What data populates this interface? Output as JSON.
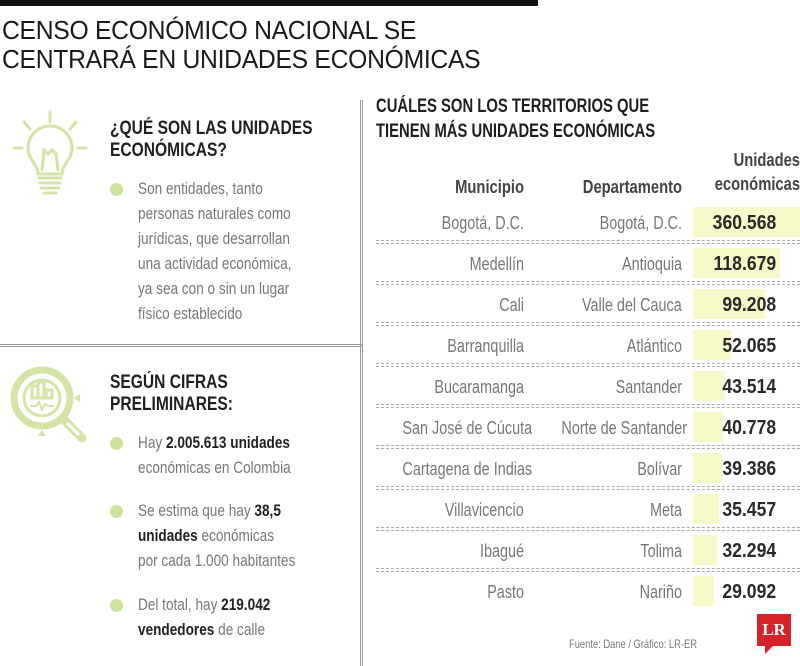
{
  "header": {
    "title_line1": "CENSO ECONÓMICO NACIONAL SE",
    "title_line2": "CENTRARÁ EN UNIDADES ECONÓMICAS"
  },
  "left": {
    "section1": {
      "icon": "lightbulb-icon",
      "title_line1": "¿QUÉ SON LAS UNIDADES",
      "title_line2": "ECONÓMICAS?",
      "bullet_lines": [
        "Son entidades, tanto",
        "personas naturales como",
        "jurídicas, que desarrollan",
        "una actividad económica,",
        "ya sea con o sin un lugar",
        "físico establecido"
      ]
    },
    "section2": {
      "icon": "magnifier-chart-icon",
      "title_line1": "SEGÚN CIFRAS",
      "title_line2": "PRELIMINARES:",
      "bullets": [
        {
          "line1_pre": "Hay ",
          "line1_bold": "2.005.613 unidades",
          "line2": "económicas en Colombia"
        },
        {
          "line1_pre": "Se estima que hay ",
          "line1_bold": "38,5",
          "line2_bold": "unidades",
          "line2_post": " económicas",
          "line3": "por cada 1.000 habitantes"
        },
        {
          "line1_pre": "Del total, hay ",
          "line1_bold": "219.042",
          "line2_bold": "vendedores",
          "line2_post": " de calle"
        }
      ]
    }
  },
  "table": {
    "title_line1": "CUÁLES SON LOS TERRITORIOS QUE",
    "title_line2": "TIENEN MÁS UNIDADES ECONÓMICAS",
    "headers": {
      "municipio": "Municipio",
      "departamento": "Departamento",
      "unidades_line1": "Unidades",
      "unidades_line2": "económicas"
    },
    "rows": [
      {
        "municipio": "Bogotá, D.C.",
        "departamento": "Bogotá, D.C.",
        "unidades": "360.568"
      },
      {
        "municipio": "Medellín",
        "departamento": "Antioquia",
        "unidades": "118.679"
      },
      {
        "municipio": "Cali",
        "departamento": "Valle del Cauca",
        "unidades": "99.208"
      },
      {
        "municipio": "Barranquilla",
        "departamento": "Atlántico",
        "unidades": "52.065"
      },
      {
        "municipio": "Bucaramanga",
        "departamento": "Santander",
        "unidades": "43.514"
      },
      {
        "municipio": "San José de Cúcuta",
        "departamento": "Norte de Santander",
        "unidades": "40.778"
      },
      {
        "municipio": "Cartagena de Indias",
        "departamento": "Bolívar",
        "unidades": "39.386"
      },
      {
        "municipio": "Villavicencio",
        "departamento": "Meta",
        "unidades": "35.457"
      },
      {
        "municipio": "Ibagué",
        "departamento": "Tolima",
        "unidades": "32.294"
      },
      {
        "municipio": "Pasto",
        "departamento": "Nariño",
        "unidades": "29.092"
      }
    ]
  },
  "footer": {
    "source": "Fuente: Dane / Gráfico: LR-ER",
    "logo": "LR"
  },
  "colors": {
    "accent_green": "#cde29a",
    "bar_highlight": "#f7f9c8",
    "logo_red": "#d6232a"
  },
  "chart_data": {
    "type": "table",
    "title": "CUÁLES SON LOS TERRITORIOS QUE TIENEN MÁS UNIDADES ECONÓMICAS",
    "columns": [
      "Municipio",
      "Departamento",
      "Unidades económicas"
    ],
    "categories": [
      "Bogotá, D.C.",
      "Medellín",
      "Cali",
      "Barranquilla",
      "Bucaramanga",
      "San José de Cúcuta",
      "Cartagena de Indias",
      "Villavicencio",
      "Ibagué",
      "Pasto"
    ],
    "departments": [
      "Bogotá, D.C.",
      "Antioquia",
      "Valle del Cauca",
      "Atlántico",
      "Santander",
      "Norte de Santander",
      "Bolívar",
      "Meta",
      "Tolima",
      "Nariño"
    ],
    "values": [
      360568,
      118679,
      99208,
      52065,
      43514,
      40778,
      39386,
      35457,
      32294,
      29092
    ],
    "highlight_bars": "proportional background bars behind values",
    "source": "Fuente: Dane / Gráfico: LR-ER"
  }
}
